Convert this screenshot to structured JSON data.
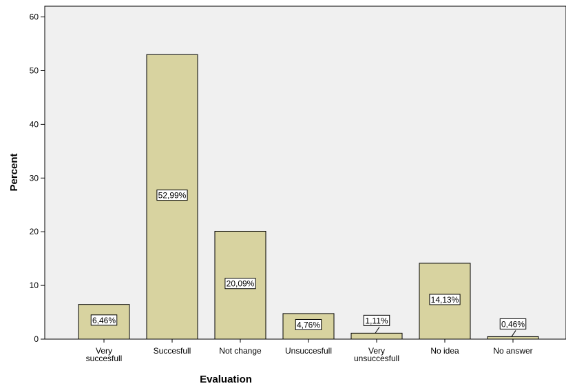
{
  "chart_data": {
    "type": "bar",
    "xlabel": "Evaluation",
    "ylabel": "Percent",
    "ylim": [
      0,
      62
    ],
    "yticks": [
      0,
      10,
      20,
      30,
      40,
      50,
      60
    ],
    "grid": false,
    "colors": {
      "bar_fill": "#d8d3a0",
      "bar_stroke": "#000000",
      "plot_bg": "#f0f0f0"
    },
    "categories": [
      {
        "label_lines": [
          "Very",
          "succesfull"
        ],
        "value": 6.46,
        "data_label": "6,46%"
      },
      {
        "label_lines": [
          "Succesfull"
        ],
        "value": 52.99,
        "data_label": "52,99%"
      },
      {
        "label_lines": [
          "Not change"
        ],
        "value": 20.09,
        "data_label": "20,09%"
      },
      {
        "label_lines": [
          "Unsuccesfull"
        ],
        "value": 4.76,
        "data_label": "4,76%"
      },
      {
        "label_lines": [
          "Very",
          "unsuccesfull"
        ],
        "value": 1.11,
        "data_label": "1,11%"
      },
      {
        "label_lines": [
          "No idea"
        ],
        "value": 14.13,
        "data_label": "14,13%"
      },
      {
        "label_lines": [
          "No answer"
        ],
        "value": 0.46,
        "data_label": "0,46%"
      }
    ]
  }
}
